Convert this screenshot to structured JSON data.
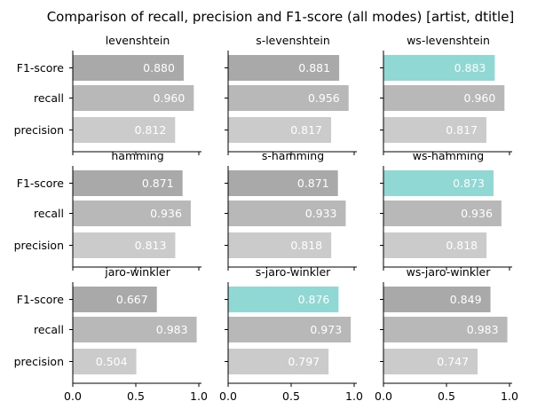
{
  "title": "Comparison of recall, precision and F1-score (all modes) [artist, dtitle]",
  "colors": {
    "f1": "#a9a9a9",
    "recall": "#b8b8b8",
    "precision": "#cbcbcb",
    "highlight": "#8fd8d4",
    "value_text": "#ffffff"
  },
  "chart_data": {
    "type": "bar",
    "orientation": "horizontal",
    "title": "Comparison of recall, precision and F1-score (all modes) [artist, dtitle]",
    "categories": [
      "F1-score",
      "recall",
      "precision"
    ],
    "xlim": [
      0,
      1.0
    ],
    "xticks": [
      "0.0",
      "0.5",
      "1.0"
    ],
    "grid": false,
    "panels": [
      {
        "name": "levenshtein",
        "values": [
          0.88,
          0.96,
          0.812
        ],
        "labels": [
          "0.880",
          "0.960",
          "0.812"
        ],
        "highlight": false
      },
      {
        "name": "s-levenshtein",
        "values": [
          0.881,
          0.956,
          0.817
        ],
        "labels": [
          "0.881",
          "0.956",
          "0.817"
        ],
        "highlight": false
      },
      {
        "name": "ws-levenshtein",
        "values": [
          0.883,
          0.96,
          0.817
        ],
        "labels": [
          "0.883",
          "0.960",
          "0.817"
        ],
        "highlight": true
      },
      {
        "name": "hamming",
        "values": [
          0.871,
          0.936,
          0.813
        ],
        "labels": [
          "0.871",
          "0.936",
          "0.813"
        ],
        "highlight": false
      },
      {
        "name": "s-hamming",
        "values": [
          0.871,
          0.933,
          0.818
        ],
        "labels": [
          "0.871",
          "0.933",
          "0.818"
        ],
        "highlight": false
      },
      {
        "name": "ws-hamming",
        "values": [
          0.873,
          0.936,
          0.818
        ],
        "labels": [
          "0.873",
          "0.936",
          "0.818"
        ],
        "highlight": true
      },
      {
        "name": "jaro-winkler",
        "values": [
          0.667,
          0.983,
          0.504
        ],
        "labels": [
          "0.667",
          "0.983",
          "0.504"
        ],
        "highlight": false
      },
      {
        "name": "s-jaro-winkler",
        "values": [
          0.876,
          0.973,
          0.797
        ],
        "labels": [
          "0.876",
          "0.973",
          "0.797"
        ],
        "highlight": true
      },
      {
        "name": "ws-jaro-winkler",
        "values": [
          0.849,
          0.983,
          0.747
        ],
        "labels": [
          "0.849",
          "0.983",
          "0.747"
        ],
        "highlight": false
      }
    ]
  }
}
